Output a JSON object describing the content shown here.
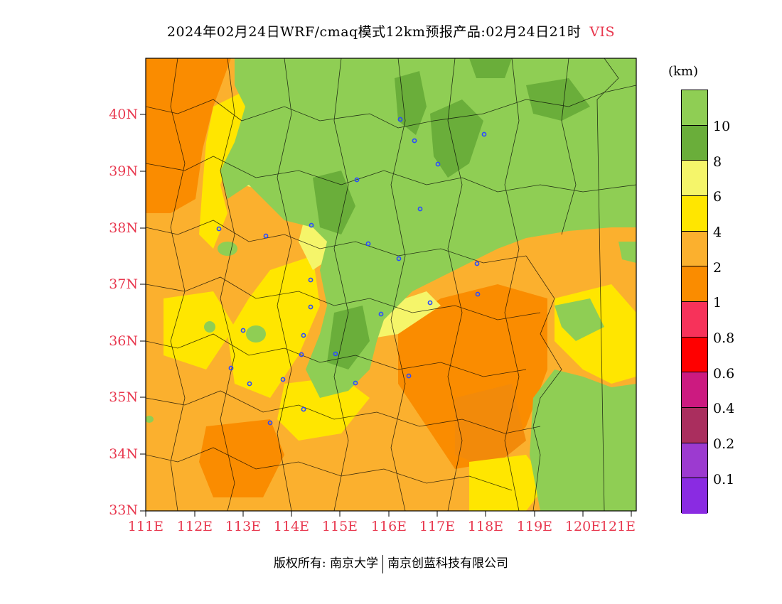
{
  "title": {
    "text": "2024年02月24日WRF/cmaq模式12km预报产品:02月24日21时",
    "variable": "VIS"
  },
  "axes": {
    "lat_labels": [
      "40N",
      "39N",
      "38N",
      "37N",
      "36N",
      "35N",
      "34N",
      "33N"
    ],
    "lon_labels": [
      "111E",
      "112E",
      "113E",
      "114E",
      "115E",
      "116E",
      "117E",
      "118E",
      "119E",
      "120E",
      "121E"
    ]
  },
  "legend": {
    "unit": "(km)",
    "labels": [
      "10",
      "8",
      "6",
      "4",
      "2",
      "1",
      "0.8",
      "0.6",
      "0.4",
      "0.2",
      "0.1"
    ],
    "colors": [
      "#8fce54",
      "#6aae3a",
      "#f5f56a",
      "#ffe600",
      "#fbb02e",
      "#fa8c00",
      "#f7325a",
      "#ff0000",
      "#cc1a80",
      "#aa2e5e",
      "#9c3ad0",
      "#8a2be2"
    ]
  },
  "footer": {
    "left": "版权所有: 南京大学",
    "right": "南京创蓝科技有限公司"
  },
  "colors": {
    "axis_label": "#e8384f",
    "city_marker": "#2a4cff"
  }
}
